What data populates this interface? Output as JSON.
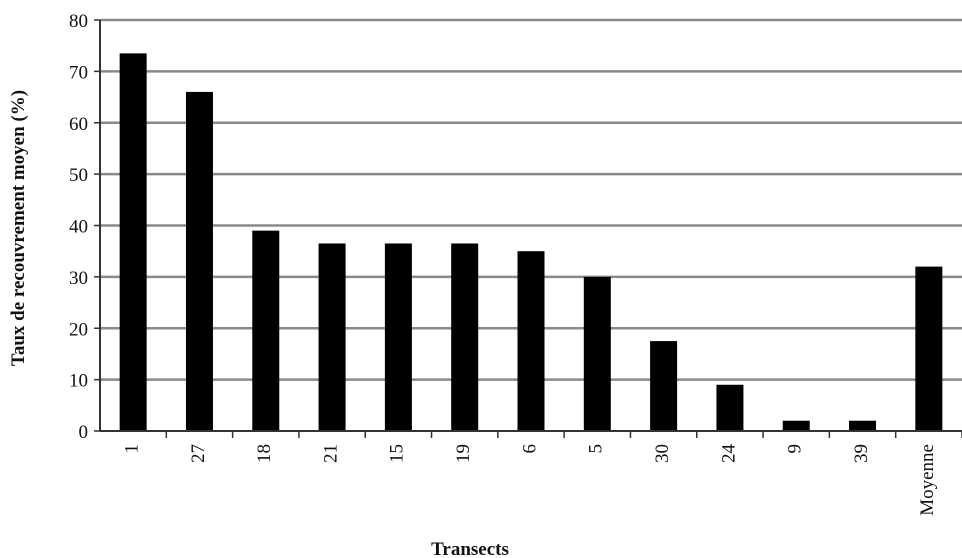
{
  "chart_data": {
    "type": "bar",
    "categories": [
      "1",
      "27",
      "18",
      "21",
      "15",
      "19",
      "6",
      "5",
      "30",
      "24",
      "9",
      "39",
      "Moyenne"
    ],
    "values": [
      73.5,
      66,
      39,
      36.5,
      36.5,
      36.5,
      35,
      30,
      17.5,
      9,
      2,
      2,
      32
    ],
    "xlabel": "Transects",
    "ylabel": "Taux de recouvrement moyen (%)",
    "ylim": [
      0,
      80
    ],
    "yticks": [
      0,
      10,
      20,
      30,
      40,
      50,
      60,
      70,
      80
    ],
    "grid": true,
    "legend": "none",
    "colors": {
      "bar": "#000000",
      "grid": "#8a8a8a",
      "axis": "#333333"
    }
  }
}
